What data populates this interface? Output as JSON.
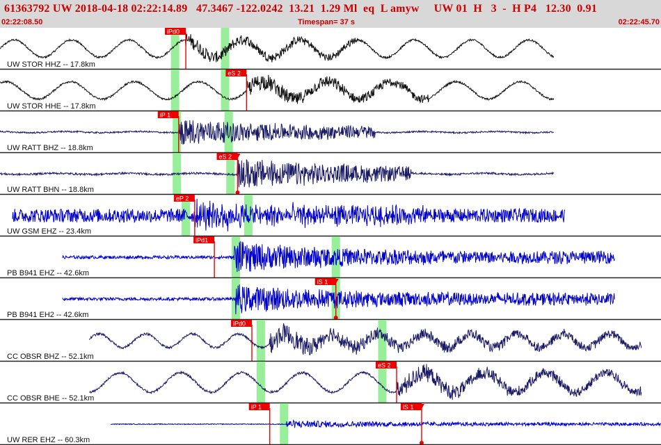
{
  "header": {
    "event_id": "61363792",
    "network": "UW",
    "origin_time": "2018-04-18 02:22:14.89",
    "latitude": "47.3467",
    "longitude": "-122.0242",
    "depth": "13.21",
    "magnitude": "1.29",
    "mag_type": "Ml",
    "event_type": "eq",
    "event_flag": "L",
    "user": "amyw",
    "author_net": "UW",
    "version": "01",
    "gtype": "H",
    "count": "3",
    "dash": "-",
    "quality": "H",
    "phase_code": "P4",
    "dist_val": "12.30",
    "rms": "0.91"
  },
  "timebar": {
    "start_time": "02:22:08.50",
    "timespan_label": "Timespan=",
    "timespan_value": "37 s",
    "end_time": "02:22:45.70"
  },
  "colors": {
    "header_bg": "#d8d8d8",
    "header_text": "#cc0000",
    "pick_red": "#ee0000",
    "pick_window": "#99ee99",
    "trace_blue": "#0000cc",
    "trace_navy": "#1a1a66",
    "trace_black": "#111111"
  },
  "chart_data": {
    "type": "seismogram",
    "x_unit": "s",
    "xlim": [
      0,
      37
    ],
    "traces": [
      {
        "label": "UW STOR HHZ -- 17.8km",
        "color": "#111111",
        "t_start": 0,
        "t_end": 31,
        "noise": 0.05,
        "lowfreq_amp": 0.45,
        "lowfreq_period": 3.2,
        "event_start": 10.4,
        "event_amp": 0.35,
        "event_end": 20,
        "windows": [
          9.8,
          12.6
        ],
        "picks": [
          {
            "label": "iPd0",
            "t": 10.4,
            "up": false
          }
        ]
      },
      {
        "label": "UW STOR HHE -- 17.8km",
        "color": "#111111",
        "t_start": 0,
        "t_end": 31,
        "noise": 0.05,
        "lowfreq_amp": 0.45,
        "lowfreq_period": 3.6,
        "event_start": 13.8,
        "event_amp": 0.45,
        "event_end": 24,
        "windows": [
          9.8,
          12.6
        ],
        "picks": [
          {
            "label": "eS 2",
            "t": 13.8,
            "up": false
          }
        ]
      },
      {
        "label": "UW RATT BHZ -- 18.8km",
        "color": "#1a1a66",
        "t_start": 0,
        "t_end": 31,
        "noise": 0.04,
        "lowfreq_amp": 0.03,
        "lowfreq_period": 4,
        "event_start": 10,
        "event_amp": 0.7,
        "event_end": 21,
        "windows": [
          9.9,
          12.8
        ],
        "picks": [
          {
            "label": "iP 1",
            "t": 10,
            "up": false
          }
        ]
      },
      {
        "label": "UW RATT BHN -- 18.8km",
        "color": "#1a1a66",
        "t_start": 0,
        "t_end": 31,
        "noise": 0.05,
        "lowfreq_amp": 0.03,
        "lowfreq_period": 4,
        "event_start": 13.3,
        "event_amp": 0.8,
        "event_end": 23,
        "windows": [
          9.9,
          12.9
        ],
        "picks": [
          {
            "label": "eS 2",
            "t": 13.3,
            "up": true
          }
        ]
      },
      {
        "label": "UW GSM EHZ -- 23.4km",
        "color": "#0000cc",
        "t_start": 0.7,
        "t_end": 31.6,
        "noise": 0.35,
        "lowfreq_amp": 0,
        "lowfreq_period": 4,
        "event_start": 10.9,
        "event_amp": 0.6,
        "event_end": 24,
        "windows": [
          10.4,
          13.9
        ],
        "picks": [
          {
            "label": "eP 2",
            "t": 10.9,
            "up": false
          }
        ]
      },
      {
        "label": "PB B941 EHZ -- 42.6km",
        "color": "#0000cc",
        "t_start": 3.5,
        "t_end": 34.4,
        "noise": 0.08,
        "lowfreq_amp": 0,
        "lowfreq_period": 4,
        "event_start": 13.1,
        "event_amp": 0.8,
        "event_end": 34.4,
        "windows": [
          13.2,
          18.8
        ],
        "picks": [
          {
            "label": "iPd1",
            "t": 12,
            "up": false
          }
        ]
      },
      {
        "label": "PB B941 EH2 -- 42.6km",
        "color": "#0000cc",
        "t_start": 3.5,
        "t_end": 34.4,
        "noise": 0.08,
        "lowfreq_amp": 0,
        "lowfreq_period": 4,
        "event_start": 13.2,
        "event_amp": 0.75,
        "event_end": 34.4,
        "windows": [
          13.2,
          18.8
        ],
        "picks": [
          {
            "label": "iS 1",
            "t": 18.8,
            "up": true
          }
        ]
      },
      {
        "label": "CC OBSR BHZ -- 52.1km",
        "color": "#1a1a66",
        "t_start": 5,
        "t_end": 35.9,
        "noise": 0.06,
        "lowfreq_amp": 0.35,
        "lowfreq_period": 2.6,
        "event_start": 15.1,
        "event_amp": 0.55,
        "event_end": 35.9,
        "windows": [
          14.6,
          21.4
        ],
        "picks": [
          {
            "label": "iPd0",
            "t": 14.1,
            "up": false
          }
        ]
      },
      {
        "label": "CC OBSR BHE -- 52.1km",
        "color": "#1a1a66",
        "t_start": 5,
        "t_end": 35.9,
        "noise": 0.06,
        "lowfreq_amp": 0.5,
        "lowfreq_period": 3.4,
        "event_start": 22.2,
        "event_amp": 0.5,
        "event_end": 35.9,
        "windows": [
          14.6,
          21.4
        ],
        "picks": [
          {
            "label": "eS 2",
            "t": 22.2,
            "up": false
          }
        ]
      },
      {
        "label": "UW RER EHZ -- 60.3km",
        "color": "#0000cc",
        "t_start": 6.2,
        "t_end": 37,
        "noise": 0.02,
        "lowfreq_amp": 0,
        "lowfreq_period": 4,
        "event_start": 16,
        "event_amp": 0.2,
        "event_end": 37,
        "windows": [
          15.9
        ],
        "picks": [
          {
            "label": "iP 1",
            "t": 15.1,
            "up": false
          },
          {
            "label": "iS 1",
            "t": 23.6,
            "up": true
          }
        ]
      }
    ]
  }
}
